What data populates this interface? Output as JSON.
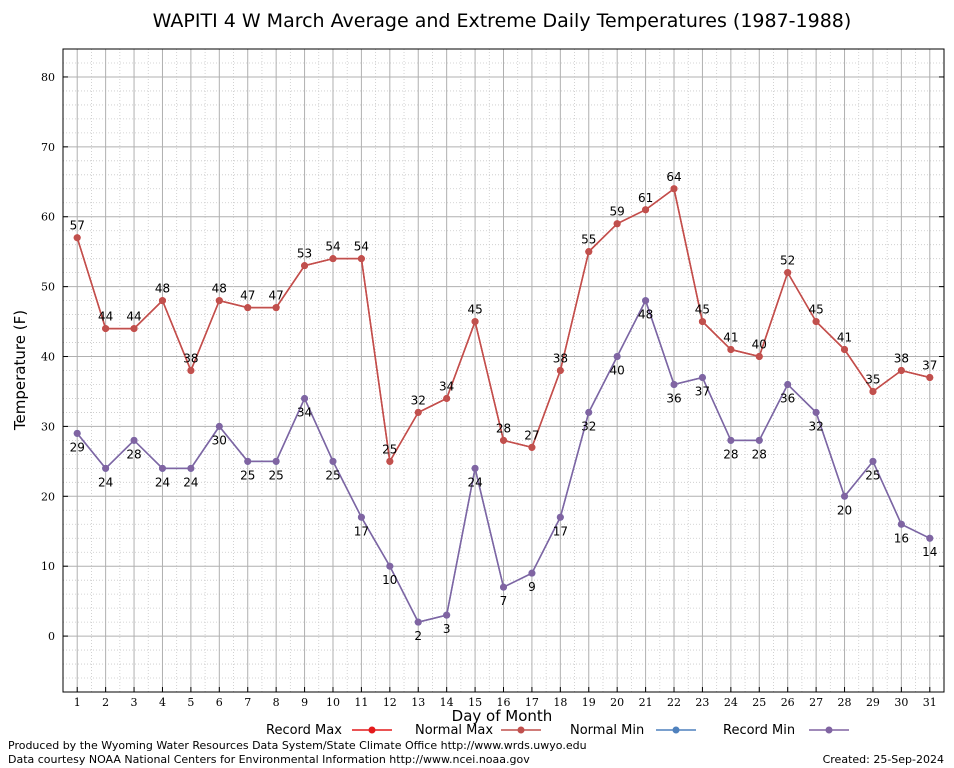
{
  "chart_data": {
    "type": "line",
    "title": "WAPITI 4 W March Average and Extreme Daily Temperatures (1987-1988)",
    "xlabel": "Day of Month",
    "ylabel": "Temperature (F)",
    "x": [
      1,
      2,
      3,
      4,
      5,
      6,
      7,
      8,
      9,
      10,
      11,
      12,
      13,
      14,
      15,
      16,
      17,
      18,
      19,
      20,
      21,
      22,
      23,
      24,
      25,
      26,
      27,
      28,
      29,
      30,
      31
    ],
    "xlim": [
      0.5,
      31.5
    ],
    "ylim": [
      -8,
      84
    ],
    "yticks": [
      0,
      10,
      20,
      30,
      40,
      50,
      60,
      70,
      80
    ],
    "grid": true,
    "legend_position": "bottom",
    "series": [
      {
        "name": "Record Max",
        "color": "#e41a1c",
        "values": [
          57,
          44,
          44,
          48,
          38,
          48,
          47,
          47,
          53,
          54,
          54,
          25,
          32,
          34,
          45,
          28,
          27,
          38,
          55,
          59,
          61,
          64,
          45,
          41,
          40,
          52,
          45,
          41,
          35,
          38,
          37
        ]
      },
      {
        "name": "Normal Max",
        "color": "#c0504d",
        "values": [
          57,
          44,
          44,
          48,
          38,
          48,
          47,
          47,
          53,
          54,
          54,
          25,
          32,
          34,
          45,
          28,
          27,
          38,
          55,
          59,
          61,
          64,
          45,
          41,
          40,
          52,
          45,
          41,
          35,
          38,
          37
        ]
      },
      {
        "name": "Normal Min",
        "color": "#4f81bd",
        "values": [
          29,
          24,
          28,
          24,
          24,
          30,
          25,
          25,
          34,
          25,
          17,
          10,
          2,
          3,
          24,
          7,
          9,
          17,
          32,
          40,
          48,
          36,
          37,
          28,
          28,
          36,
          32,
          20,
          25,
          16,
          14
        ]
      },
      {
        "name": "Record Min",
        "color": "#8064a2",
        "values": [
          29,
          24,
          28,
          24,
          24,
          30,
          25,
          25,
          34,
          25,
          17,
          10,
          2,
          3,
          24,
          7,
          9,
          17,
          32,
          40,
          48,
          36,
          37,
          28,
          28,
          36,
          32,
          20,
          25,
          16,
          14
        ]
      }
    ]
  },
  "footer": {
    "produced_by": "Produced by the Wyoming Water Resources Data System/State Climate Office http://www.wrds.uwyo.edu",
    "courtesy": "Data courtesy NOAA National Centers for Environmental Information http://www.ncei.noaa.gov",
    "created": "Created:  25-Sep-2024"
  }
}
